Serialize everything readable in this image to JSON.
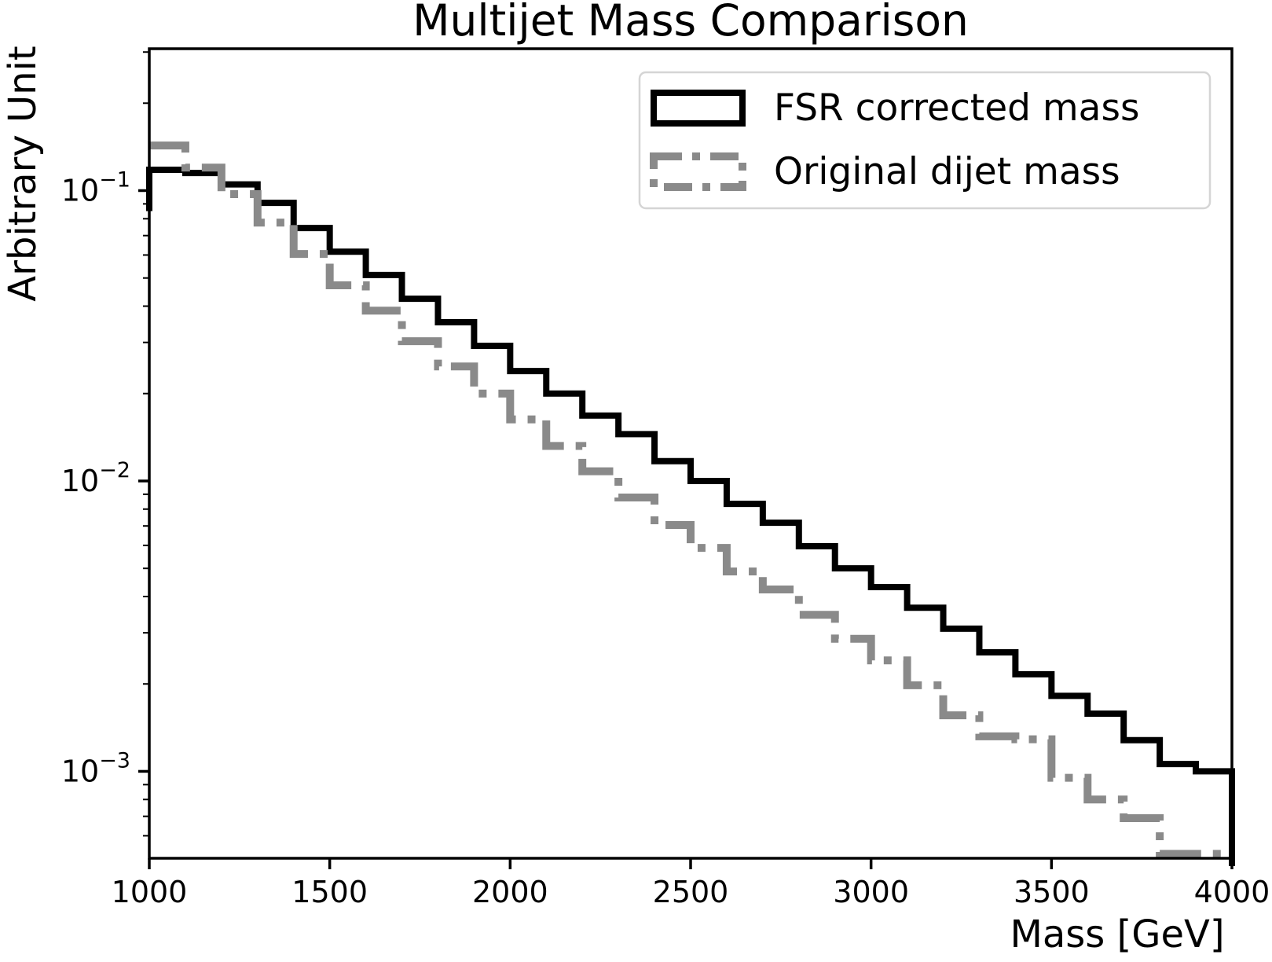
{
  "chart_data": {
    "type": "line",
    "subtype": "step-histogram",
    "title": "Multijet Mass Comparison",
    "xlabel": "Mass [GeV]",
    "ylabel": "Arbitrary Unit",
    "xlim": [
      1000,
      4000
    ],
    "ylim": [
      0.000502,
      0.308
    ],
    "yscale": "log",
    "grid": false,
    "legend_position": "upper right",
    "xticks": [
      1000,
      1500,
      2000,
      2500,
      3000,
      3500,
      4000
    ],
    "yticks": [
      0.1,
      0.01,
      0.001
    ],
    "bin_edges": [
      1000,
      1100,
      1200,
      1300,
      1400,
      1500,
      1600,
      1700,
      1800,
      1900,
      2000,
      2100,
      2200,
      2300,
      2400,
      2500,
      2600,
      2700,
      2800,
      2900,
      3000,
      3100,
      3200,
      3300,
      3400,
      3500,
      3600,
      3700,
      3800,
      3900,
      4000
    ],
    "series": [
      {
        "name": "FSR corrected mass",
        "color": "#000000",
        "linestyle": "solid",
        "linewidth": 8,
        "left_edge_drop_to": 0.085,
        "right_edge_drop": true,
        "values": [
          0.118,
          0.115,
          0.105,
          0.0907,
          0.0743,
          0.0616,
          0.0512,
          0.0424,
          0.0352,
          0.0292,
          0.0239,
          0.02,
          0.0168,
          0.0145,
          0.0117,
          0.01,
          0.00834,
          0.00718,
          0.00596,
          0.005,
          0.00431,
          0.00366,
          0.0031,
          0.00257,
          0.00216,
          0.00182,
          0.00158,
          0.00128,
          0.00106,
          0.001
        ]
      },
      {
        "name": "Original dijet mass",
        "color": "#8a8a8a",
        "linestyle": "dashdot",
        "linewidth": 10,
        "left_edge_drop_to": null,
        "right_edge_drop": false,
        "values": [
          0.143,
          0.12,
          0.0972,
          0.0776,
          0.0605,
          0.0472,
          0.0386,
          0.0303,
          0.0248,
          0.02,
          0.0163,
          0.0132,
          0.0108,
          0.00877,
          0.00705,
          0.00588,
          0.00488,
          0.00423,
          0.00346,
          0.00286,
          0.00241,
          0.00198,
          0.00156,
          0.00132,
          0.00129,
          0.00095,
          0.0008,
          0.00069,
          0.00052,
          0.00052
        ]
      }
    ]
  }
}
